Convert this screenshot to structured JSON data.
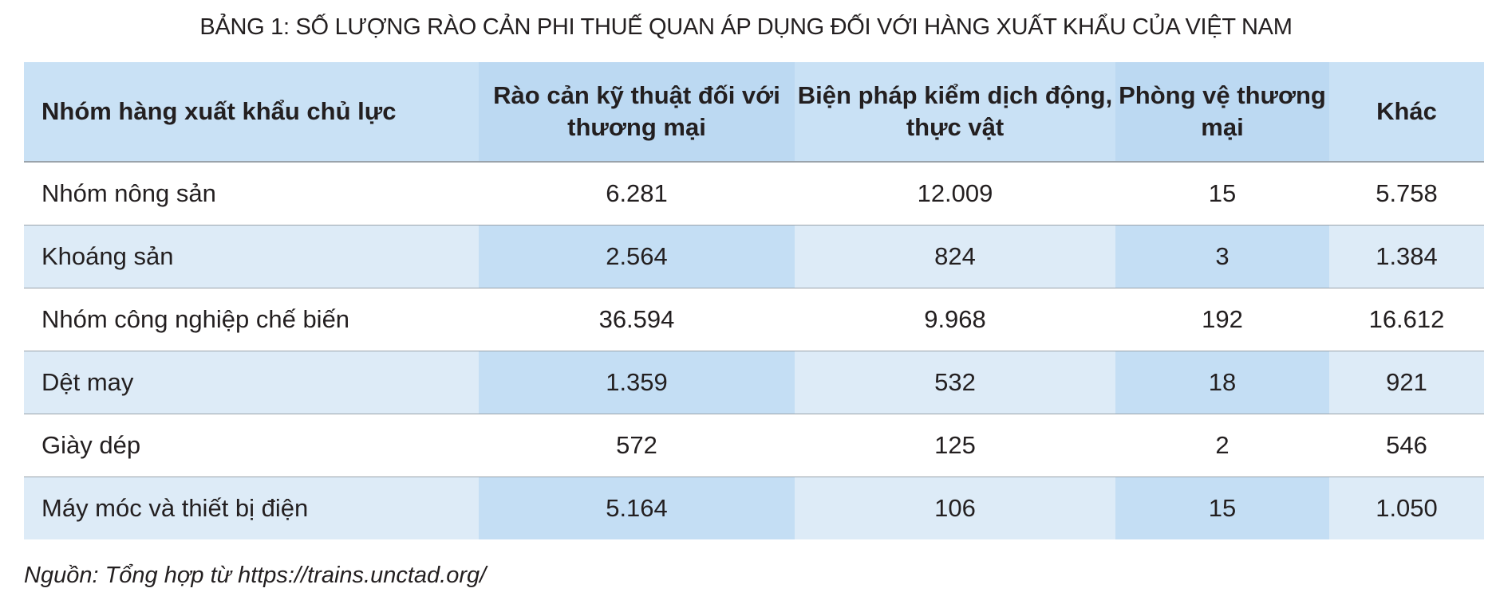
{
  "header": {
    "title": "BẢNG 1: SỐ LƯỢNG RÀO CẢN PHI THUẾ QUAN ÁP DỤNG ĐỐI VỚI HÀNG XUẤT KHẨU CỦA VIỆT NAM"
  },
  "table": {
    "columns": [
      "Nhóm hàng xuất khẩu chủ lực",
      "Rào cản kỹ thuật đối với thương mại",
      "Biện pháp kiểm dịch động, thực vật",
      "Phòng vệ thương mại",
      "Khác"
    ],
    "rows": [
      [
        "Nhóm nông sản",
        "6.281",
        "12.009",
        "15",
        "5.758"
      ],
      [
        "Khoáng sản",
        "2.564",
        "824",
        "3",
        "1.384"
      ],
      [
        "Nhóm công nghiệp chế biến",
        "36.594",
        "9.968",
        "192",
        "16.612"
      ],
      [
        "Dệt may",
        "1.359",
        "532",
        "18",
        "921"
      ],
      [
        "Giày dép",
        "572",
        "125",
        "2",
        "546"
      ],
      [
        "Máy móc và thiết bị điện",
        "5.164",
        "106",
        "15",
        "1.050"
      ]
    ]
  },
  "footer": {
    "source": "Nguồn: Tổng hợp từ https://trains.unctad.org/"
  }
}
